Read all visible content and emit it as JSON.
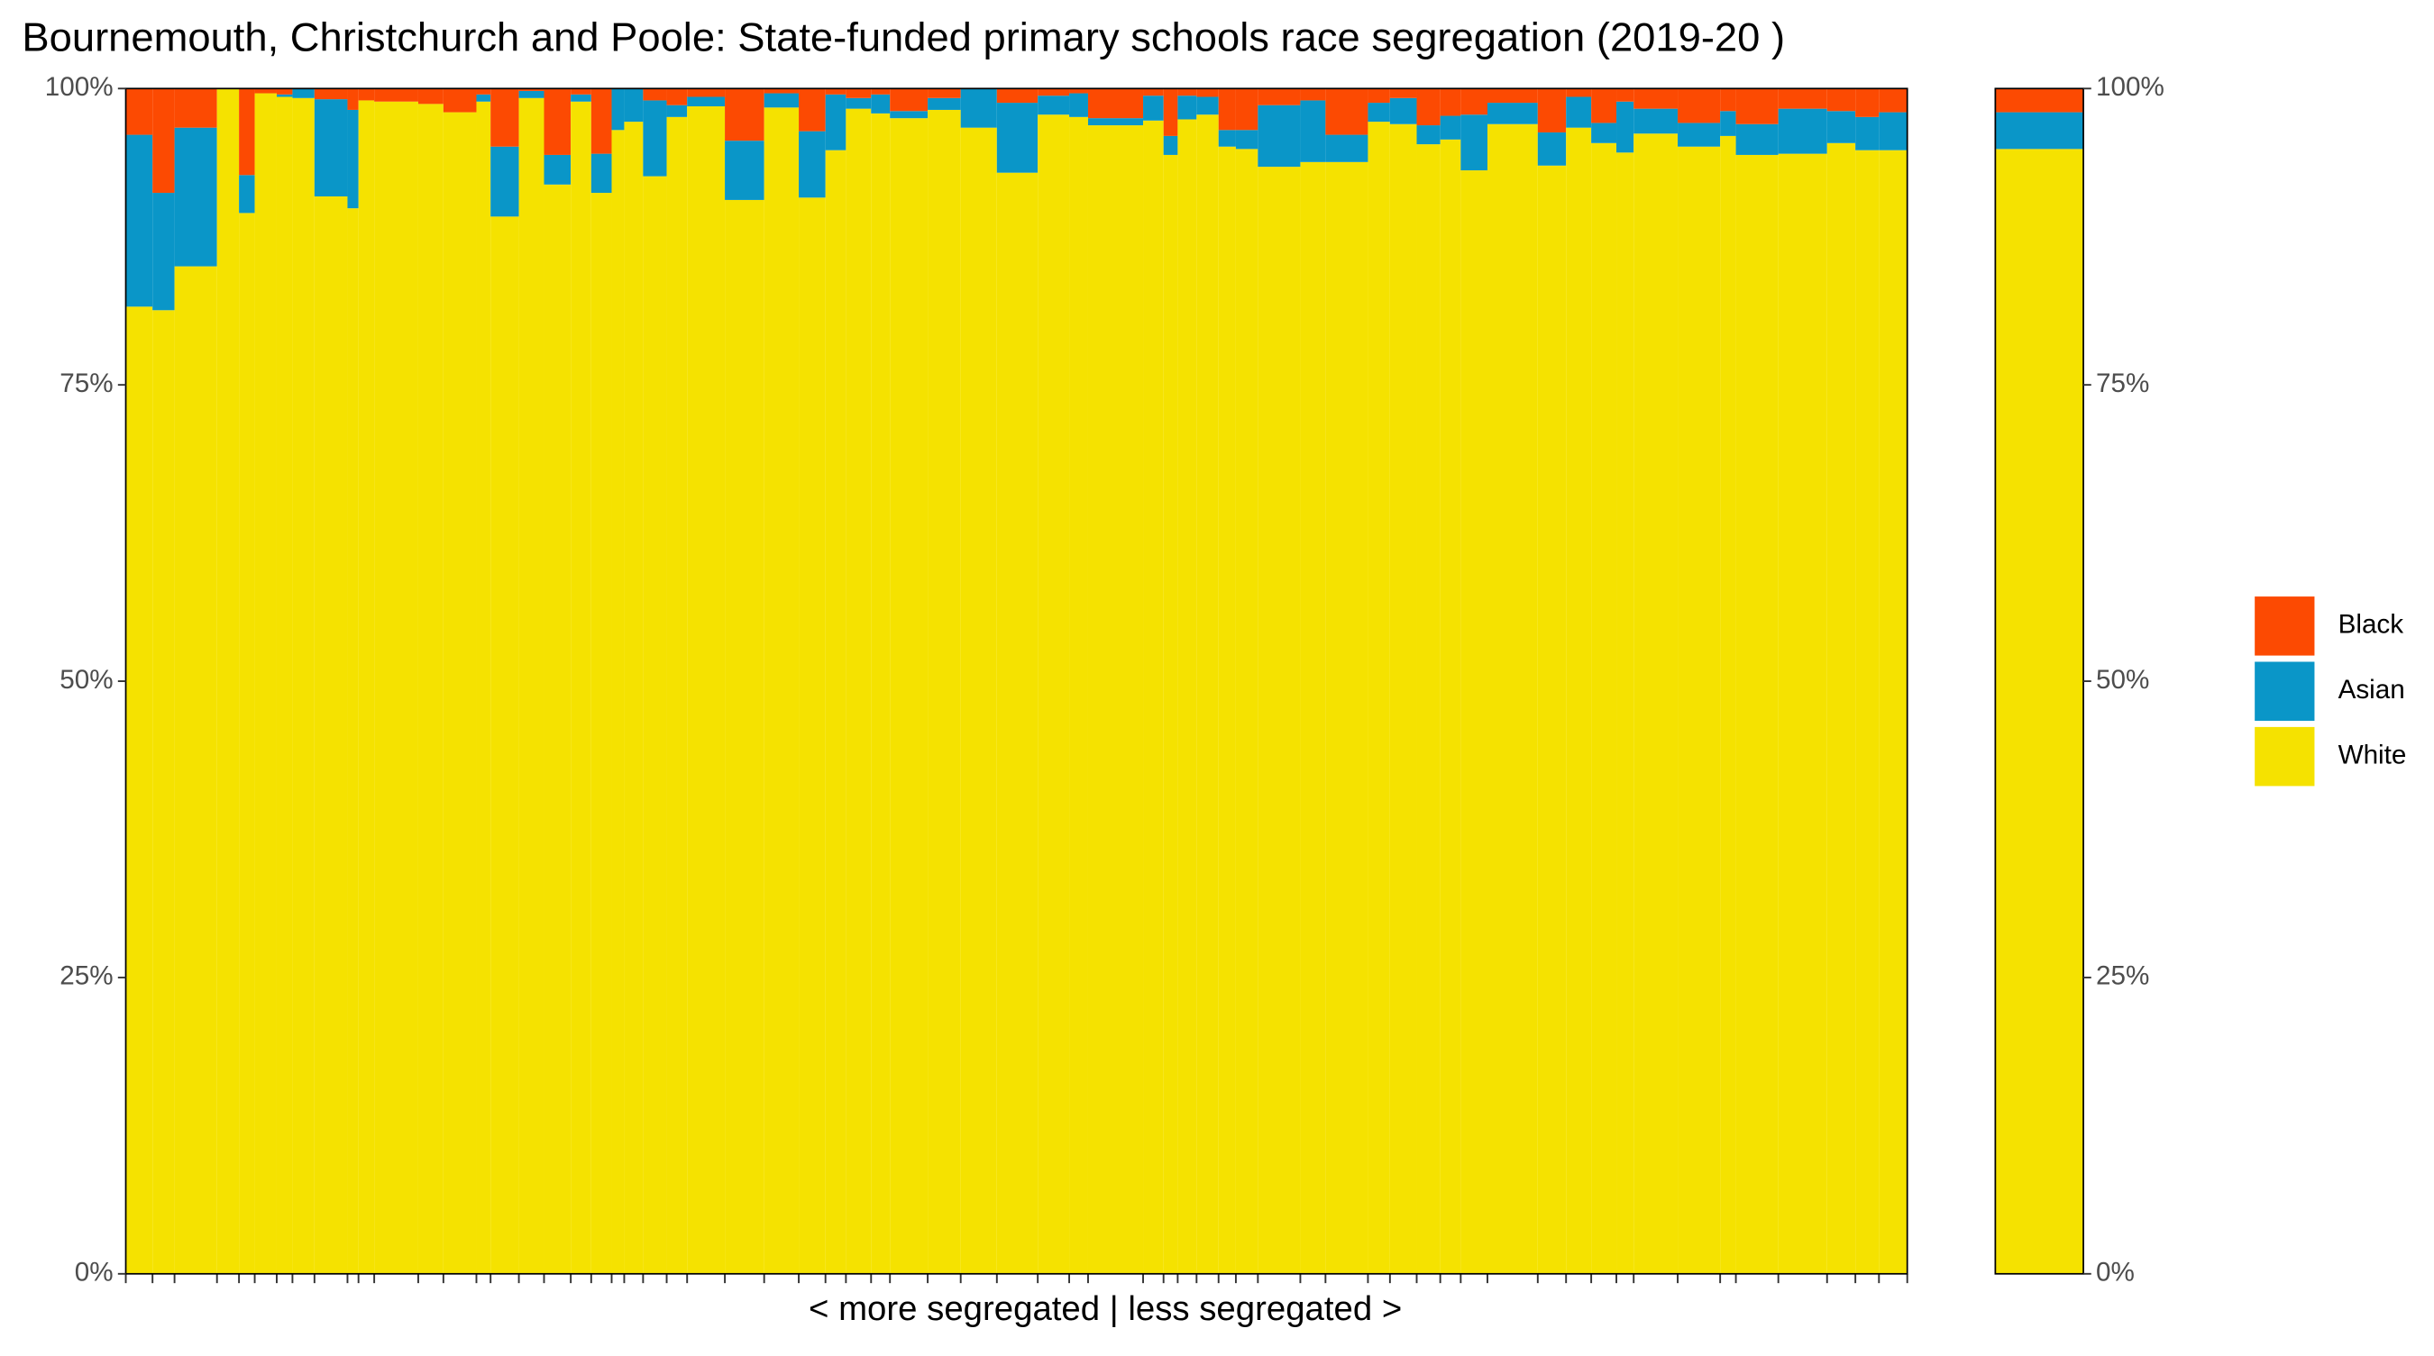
{
  "chart_data": {
    "type": "marimekko",
    "title": "Bournemouth, Christchurch and Poole: State-funded primary schools race segregation (2019-20 )",
    "x_label": "< more segregated | less segregated >",
    "ylim": [
      0,
      100
    ],
    "yticks": [
      {
        "value": 0,
        "label": "0%"
      },
      {
        "value": 25,
        "label": "25%"
      },
      {
        "value": 50,
        "label": "50%"
      },
      {
        "value": 75,
        "label": "75%"
      },
      {
        "value": 100,
        "label": "100%"
      }
    ],
    "widths": [
      17,
      14,
      27,
      14,
      10,
      14,
      10,
      14,
      21,
      7,
      10,
      28,
      16,
      21,
      9,
      18,
      16,
      17,
      13,
      13,
      8,
      12,
      15,
      13,
      24,
      25,
      22,
      17,
      13,
      16,
      12,
      24,
      21,
      23,
      26,
      20,
      12,
      35,
      13,
      9,
      12,
      14,
      11,
      14,
      27,
      16,
      27,
      14,
      17,
      15,
      13,
      17,
      32,
      18,
      16,
      16,
      11,
      28,
      27,
      10,
      27,
      31,
      18,
      15,
      18
    ],
    "series": [
      {
        "name": "White",
        "color": "#f5e200",
        "total": 94.9,
        "values": [
          81.6,
          81.3,
          85,
          100,
          89.5,
          99.6,
          99.3,
          99.2,
          90.9,
          89.9,
          99,
          98.9,
          98.7,
          98,
          98.9,
          89.2,
          99.2,
          91.9,
          98.9,
          91.2,
          96.5,
          97.2,
          92.6,
          97.6,
          98.5,
          90.6,
          98.4,
          90.8,
          94.8,
          98.3,
          97.9,
          97.5,
          98.2,
          96.7,
          92.9,
          97.8,
          97.6,
          96.9,
          97.3,
          94.4,
          97.4,
          97.8,
          95.1,
          94.9,
          93.4,
          93.8,
          93.8,
          97.2,
          97,
          95.3,
          95.7,
          93.1,
          97,
          93.5,
          96.7,
          95.4,
          94.6,
          96.2,
          95.1,
          96,
          94.4,
          94.5,
          95.4,
          94.8,
          94.8
        ]
      },
      {
        "name": "Asian",
        "color": "#0a96c8",
        "total": 3.1,
        "values": [
          14.5,
          9.9,
          11.7,
          0,
          3.2,
          0,
          0.2,
          0.8,
          8.2,
          8.3,
          0,
          0,
          0,
          0,
          0.6,
          5.9,
          0.6,
          2.5,
          0.6,
          3.3,
          3.5,
          2.8,
          6.4,
          1,
          0.8,
          5,
          1.2,
          5.6,
          4.7,
          0.9,
          1.6,
          0.6,
          1,
          3.3,
          5.9,
          1.6,
          2,
          0.6,
          2.1,
          1.6,
          2,
          1.5,
          1.4,
          1.6,
          5.2,
          5.2,
          2.3,
          1.6,
          2.2,
          1.6,
          2,
          4.7,
          1.8,
          2.8,
          2.6,
          1.7,
          4.3,
          2.1,
          2,
          2.1,
          2.6,
          3.8,
          2.7,
          2.8,
          3.2
        ]
      },
      {
        "name": "Black",
        "color": "#fc4a02",
        "total": 2,
        "values": [
          3.9,
          8.8,
          3.3,
          0,
          7.3,
          0.4,
          0.5,
          0,
          0.9,
          1.8,
          1,
          1.1,
          1.3,
          2,
          0.5,
          4.9,
          0.2,
          5.6,
          0.5,
          5.5,
          0,
          0,
          1,
          1.4,
          0.7,
          4.4,
          0.4,
          3.6,
          0.5,
          0.8,
          0.5,
          1.9,
          0.8,
          0,
          1.2,
          0.6,
          0.4,
          2.5,
          0.6,
          4,
          0.6,
          0.7,
          3.5,
          3.5,
          1.4,
          1,
          3.9,
          1.2,
          0.8,
          3.1,
          2.3,
          2.2,
          1.2,
          3.7,
          0.7,
          2.9,
          1.1,
          1.7,
          2.9,
          1.9,
          3,
          1.7,
          1.9,
          2.4,
          2
        ]
      }
    ]
  }
}
